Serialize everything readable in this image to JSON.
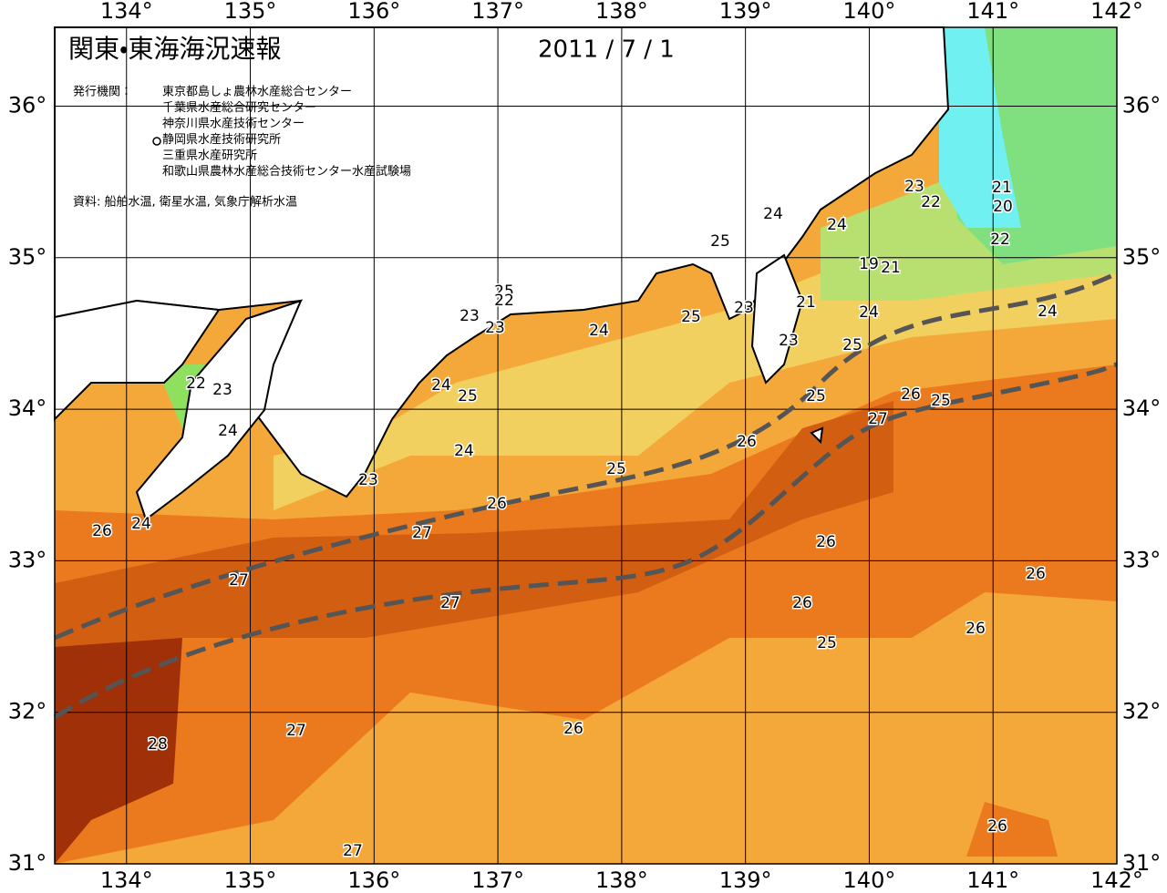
{
  "header": {
    "title": "関東・東海海況速報",
    "date": "2011 / 7 / 1",
    "publisher_label": "発行機関：",
    "publishers": [
      "東京都島しょ農林水産総合センター",
      "千葉県水産総合研究センター",
      "神奈川県水産技術センター",
      "静岡県水産技術研究所",
      "三重県水産研究所",
      "和歌山県農林水産総合技術センター水産試験場"
    ],
    "source": "資料: 船舶水温, 衛星水温, 気象庁解析水温"
  },
  "map": {
    "xlim": [
      133.42,
      142
    ],
    "ylim": [
      31,
      36.52
    ],
    "xticks": [
      {
        "value": 134,
        "label": "134°"
      },
      {
        "value": 135,
        "label": "135°"
      },
      {
        "value": 136,
        "label": "136°"
      },
      {
        "value": 137,
        "label": "137°"
      },
      {
        "value": 138,
        "label": "138°"
      },
      {
        "value": 139,
        "label": "139°"
      },
      {
        "value": 140,
        "label": "140°"
      },
      {
        "value": 141,
        "label": "141°"
      },
      {
        "value": 142,
        "label": "142°"
      }
    ],
    "yticks": [
      {
        "value": 31,
        "label": "31°"
      },
      {
        "value": 32,
        "label": "32°"
      },
      {
        "value": 33,
        "label": "33°"
      },
      {
        "value": 34,
        "label": "34°"
      },
      {
        "value": 35,
        "label": "35°"
      },
      {
        "value": 36,
        "label": "36°"
      }
    ],
    "contour_labels": [
      26,
      24,
      22,
      23,
      24,
      23,
      23,
      23,
      25,
      22,
      24,
      24,
      25,
      24,
      25,
      26,
      27,
      27,
      27,
      25,
      25,
      24,
      24,
      23,
      21,
      23,
      19,
      21,
      24,
      25,
      25,
      26,
      27,
      26,
      25,
      24,
      23,
      22,
      21,
      20,
      22,
      26,
      26,
      25,
      26,
      26,
      27,
      28,
      26,
      27,
      26
    ]
  }
}
